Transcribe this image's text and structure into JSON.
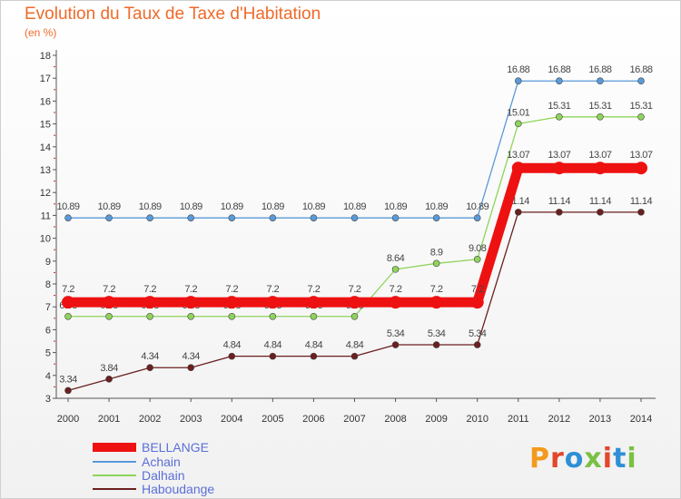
{
  "title": "Evolution du Taux de Taxe d'Habitation",
  "unit": "(en %)",
  "logo": {
    "text": "Proxiti"
  },
  "chart_data": {
    "type": "line",
    "x": [
      "2000",
      "2001",
      "2002",
      "2003",
      "2004",
      "2005",
      "2006",
      "2007",
      "2008",
      "2009",
      "2010",
      "2011",
      "2012",
      "2013",
      "2014"
    ],
    "ylim": [
      3,
      18
    ],
    "yticks": [
      3,
      4,
      5,
      6,
      7,
      8,
      9,
      10,
      11,
      12,
      13,
      14,
      15,
      16,
      17,
      18
    ],
    "grid": false,
    "legend": "bottom-left",
    "series": [
      {
        "name": "Achain",
        "color": "#5a9ad8",
        "values": [
          10.89,
          10.89,
          10.89,
          10.89,
          10.89,
          10.89,
          10.89,
          10.89,
          10.89,
          10.89,
          10.89,
          16.88,
          16.88,
          16.88,
          16.88
        ],
        "labels": [
          "10.89",
          "10.89",
          "10.89",
          "10.89",
          "10.89",
          "10.89",
          "10.89",
          "10.89",
          "10.89",
          "10.89",
          "10.89",
          "16.88",
          "16.88",
          "16.88",
          "16.88"
        ]
      },
      {
        "name": "Dalhain",
        "color": "#8ed45a",
        "values": [
          6.58,
          6.58,
          6.58,
          6.58,
          6.58,
          6.58,
          6.58,
          6.58,
          8.64,
          8.9,
          9.08,
          15.01,
          15.31,
          15.31,
          15.31
        ],
        "labels": [
          "6.58",
          "6.58",
          "6.58",
          "6.58",
          "6.58",
          "6.58",
          "6.58",
          "6.58",
          "8.64",
          "8.9",
          "9.08",
          "15.01",
          "15.31",
          "15.31",
          "15.31"
        ]
      },
      {
        "name": "Haboudange",
        "color": "#6b1f1f",
        "values": [
          3.34,
          3.84,
          4.34,
          4.34,
          4.84,
          4.84,
          4.84,
          4.84,
          5.34,
          5.34,
          5.34,
          11.14,
          11.14,
          11.14,
          11.14
        ],
        "labels": [
          "3.34",
          "3.84",
          "4.34",
          "4.34",
          "4.84",
          "4.84",
          "4.84",
          "4.84",
          "5.34",
          "5.34",
          "5.34",
          "11.14",
          "11.14",
          "11.14",
          "11.14"
        ]
      },
      {
        "name": "BELLANGE",
        "color": "#ee1111",
        "bold": true,
        "values": [
          7.2,
          7.2,
          7.2,
          7.2,
          7.2,
          7.2,
          7.2,
          7.2,
          7.2,
          7.2,
          7.2,
          13.07,
          13.07,
          13.07,
          13.07
        ],
        "labels": [
          "7.2",
          "7.2",
          "7.2",
          "7.2",
          "7.2",
          "7.2",
          "7.2",
          "7.2",
          "7.2",
          "7.2",
          "7.2",
          "13.07",
          "13.07",
          "13.07",
          "13.07"
        ]
      }
    ],
    "legend_order": [
      "BELLANGE",
      "Achain",
      "Dalhain",
      "Haboudange"
    ]
  }
}
